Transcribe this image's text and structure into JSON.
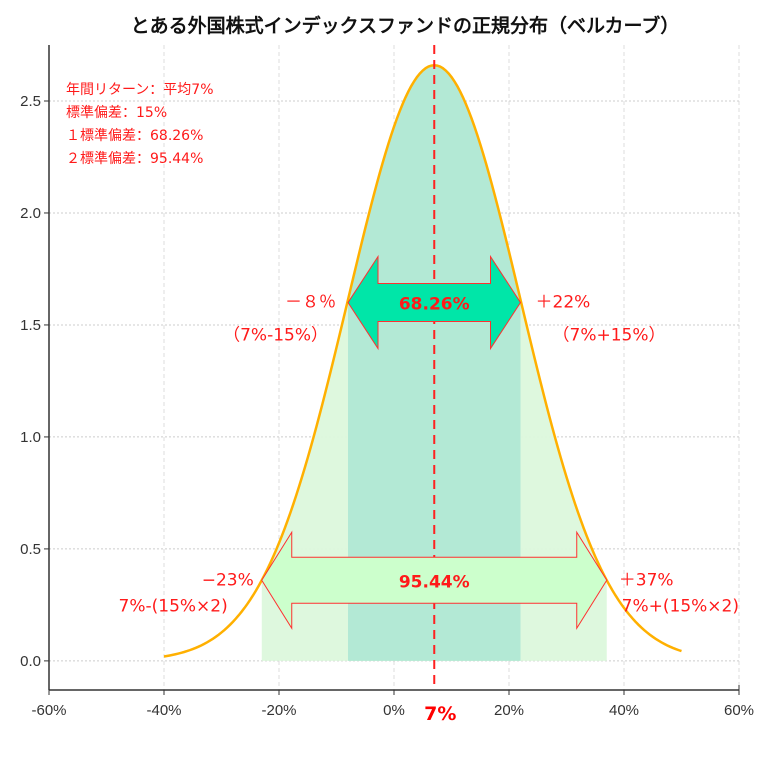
{
  "chart_data": {
    "type": "area",
    "title": "とある外国株式インデックスファンドの正規分布（ベルカーブ）",
    "xlabel": "",
    "ylabel": "",
    "xlim": [
      -60,
      60
    ],
    "ylim": [
      -0.13,
      2.75
    ],
    "x_unit": "%",
    "x_ticks": [
      "-60%",
      "-40%",
      "-20%",
      "0%",
      "20%",
      "40%",
      "60%"
    ],
    "x_tick_values": [
      -60,
      -40,
      -20,
      0,
      20,
      40,
      60
    ],
    "y_ticks": [
      "0.0",
      "0.5",
      "1.0",
      "1.5",
      "2.0",
      "2.5"
    ],
    "y_tick_values": [
      0,
      0.5,
      1.0,
      1.5,
      2.0,
      2.5
    ],
    "grid": true,
    "mean_marker": {
      "value": 7,
      "label": "7%",
      "color": "#ff0000"
    },
    "series": [
      {
        "kind": "normal-pdf",
        "mean": 7,
        "std": 15,
        "x_range": [
          -40,
          50
        ],
        "color": "#ffb000"
      }
    ],
    "bands": [
      {
        "from": -8,
        "to": 22,
        "color": "#b0e8d4",
        "label": "68.26%"
      },
      {
        "from": -23,
        "to": 37,
        "color": "#dcf8dc",
        "label": "95.44%"
      }
    ],
    "arrows": [
      {
        "from": -8,
        "to": 22,
        "y": 1.6,
        "label": "68.26%",
        "fill": "#00e6a8",
        "stroke": "#ff3030",
        "left_label": [
          "－８％",
          "（7%-15%）"
        ],
        "right_label": [
          "＋22%",
          "（7%+15%）"
        ]
      },
      {
        "from": -23,
        "to": 37,
        "y": 0.36,
        "label": "95.44%",
        "fill": "#ccffcc",
        "stroke": "#ff3030",
        "left_label": [
          "−23%",
          "7%-(15%×2)"
        ],
        "right_label": [
          "＋37%",
          "7%+(15%×2)"
        ]
      }
    ],
    "annotations": [
      "年間リターン：平均7%",
      "標準偏差：15%",
      "１標準偏差：68.26%",
      "２標準偏差：95.44%"
    ]
  }
}
